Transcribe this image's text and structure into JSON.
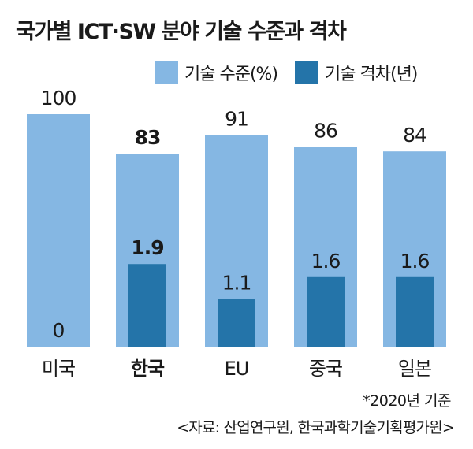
{
  "title": "국가별 ICT·SW 분야 기술 수준과 격차",
  "legend": [
    {
      "label": "기술 수준(%)",
      "color": "#85b7e3"
    },
    {
      "label": "기술 격차(년)",
      "color": "#2474a9"
    }
  ],
  "note": "*2020년 기준",
  "source": "<자료: 산업연구원, 한국과학기술기획평가원>",
  "chart_data": {
    "type": "bar",
    "categories": [
      "미국",
      "한국",
      "EU",
      "중국",
      "일본"
    ],
    "highlight": "한국",
    "series": [
      {
        "name": "기술 수준(%)",
        "values": [
          100,
          83,
          91,
          86,
          84
        ],
        "color": "#85b7e3"
      },
      {
        "name": "기술 격차(년)",
        "values": [
          0,
          1.9,
          1.1,
          1.6,
          1.6
        ],
        "color": "#2474a9"
      }
    ],
    "value_labels": {
      "level": [
        "100",
        "83",
        "91",
        "86",
        "84"
      ],
      "gap": [
        "0",
        "1.9",
        "1.1",
        "1.6",
        "1.6"
      ]
    },
    "ylim_level": [
      0,
      100
    ],
    "ylim_gap": [
      0,
      5.35
    ]
  }
}
